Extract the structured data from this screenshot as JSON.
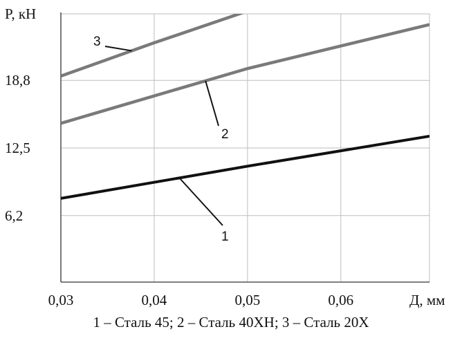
{
  "chart_data": {
    "type": "line",
    "title": "",
    "xlabel": "Д, мм",
    "ylabel": "P, кН",
    "xlim": [
      0.03,
      0.0695
    ],
    "ylim": [
      0,
      25
    ],
    "x_ticks": [
      "0,03",
      "0,04",
      "0,05",
      "0,06"
    ],
    "x_tick_values": [
      0.03,
      0.04,
      0.05,
      0.06
    ],
    "y_ticks": [
      "6,2",
      "12,5",
      "18,8"
    ],
    "y_tick_values": [
      6.2,
      12.5,
      18.8
    ],
    "grid": true,
    "legend_position": "bottom",
    "series": [
      {
        "label": "1",
        "x": [
          0.03,
          0.05,
          0.0695
        ],
        "y": [
          7.8,
          10.8,
          13.6
        ],
        "color": "#111111"
      },
      {
        "label": "2",
        "x": [
          0.03,
          0.05,
          0.0695
        ],
        "y": [
          14.8,
          19.9,
          24.0
        ],
        "color": "#7a7a7a"
      },
      {
        "label": "3",
        "x": [
          0.03,
          0.04,
          0.0525
        ],
        "y": [
          19.2,
          22.3,
          26.0
        ],
        "color": "#7a7a7a"
      }
    ],
    "caption": "1 – Сталь 45; 2 – Сталь 40ХН; 3 – Сталь 20Х"
  }
}
